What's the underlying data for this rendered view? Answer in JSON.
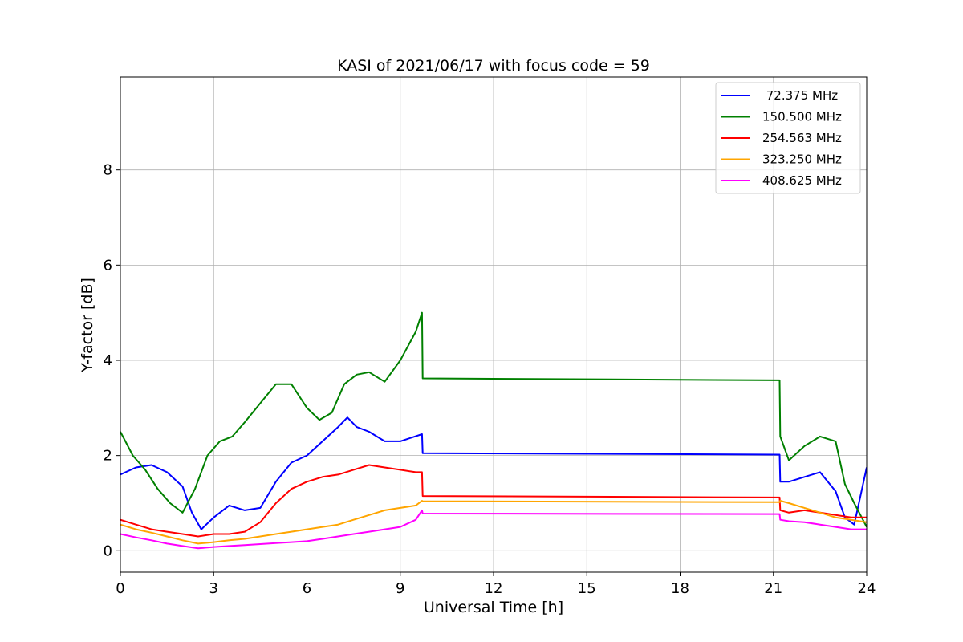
{
  "chart_data": {
    "type": "line",
    "title": "KASI of 2021/06/17 with focus code = 59",
    "xlabel": "Universal Time [h]",
    "ylabel": "Y-factor [dB]",
    "xlim": [
      0,
      24
    ],
    "ylim": [
      -0.45,
      9.95
    ],
    "xticks": [
      0,
      3,
      6,
      9,
      12,
      15,
      18,
      21,
      24
    ],
    "yticks": [
      0,
      2,
      4,
      6,
      8
    ],
    "grid": true,
    "legend_position": "top-right",
    "series": [
      {
        "name": " 72.375 MHz",
        "color": "#0000ff",
        "x": [
          0,
          0.5,
          1.0,
          1.5,
          2.0,
          2.3,
          2.6,
          3.0,
          3.5,
          4.0,
          4.5,
          5.0,
          5.5,
          6.0,
          6.5,
          7.0,
          7.3,
          7.6,
          8.0,
          8.5,
          9.0,
          9.7,
          9.72,
          21.2,
          21.22,
          21.5,
          22.0,
          22.5,
          23.0,
          23.3,
          23.6,
          24.0
        ],
        "y": [
          1.6,
          1.75,
          1.8,
          1.65,
          1.35,
          0.8,
          0.45,
          0.7,
          0.95,
          0.85,
          0.9,
          1.45,
          1.85,
          2.0,
          2.3,
          2.6,
          2.8,
          2.6,
          2.5,
          2.3,
          2.3,
          2.45,
          2.05,
          2.02,
          1.45,
          1.45,
          1.55,
          1.65,
          1.25,
          0.7,
          0.55,
          1.75
        ]
      },
      {
        "name": "150.500 MHz",
        "color": "#008000",
        "x": [
          0,
          0.4,
          0.8,
          1.2,
          1.6,
          2.0,
          2.4,
          2.8,
          3.2,
          3.6,
          4.0,
          4.5,
          5.0,
          5.5,
          6.0,
          6.4,
          6.8,
          7.2,
          7.6,
          8.0,
          8.5,
          9.0,
          9.5,
          9.7,
          9.72,
          21.2,
          21.22,
          21.5,
          22.0,
          22.5,
          23.0,
          23.3,
          23.6,
          24.0
        ],
        "y": [
          2.5,
          2.0,
          1.7,
          1.3,
          1.0,
          0.8,
          1.3,
          2.0,
          2.3,
          2.4,
          2.7,
          3.1,
          3.5,
          3.5,
          3.0,
          2.75,
          2.9,
          3.5,
          3.7,
          3.75,
          3.55,
          4.0,
          4.6,
          5.0,
          3.62,
          3.58,
          2.4,
          1.9,
          2.2,
          2.4,
          2.3,
          1.4,
          1.0,
          0.5
        ]
      },
      {
        "name": "254.563 MHz",
        "color": "#ff0000",
        "x": [
          0,
          0.5,
          1.0,
          1.5,
          2.0,
          2.5,
          3.0,
          3.5,
          4.0,
          4.5,
          5.0,
          5.5,
          6.0,
          6.5,
          7.0,
          7.5,
          8.0,
          8.5,
          9.0,
          9.5,
          9.7,
          9.72,
          21.2,
          21.22,
          21.5,
          22.0,
          22.5,
          23.0,
          23.5,
          24.0
        ],
        "y": [
          0.65,
          0.55,
          0.45,
          0.4,
          0.35,
          0.3,
          0.35,
          0.35,
          0.4,
          0.6,
          1.0,
          1.3,
          1.45,
          1.55,
          1.6,
          1.7,
          1.8,
          1.75,
          1.7,
          1.65,
          1.65,
          1.15,
          1.12,
          0.85,
          0.8,
          0.85,
          0.8,
          0.75,
          0.7,
          0.7
        ]
      },
      {
        "name": "323.250 MHz",
        "color": "#ffa500",
        "x": [
          0,
          0.5,
          1.0,
          1.5,
          2.0,
          2.5,
          3.0,
          3.5,
          4.0,
          4.5,
          5.0,
          5.5,
          6.0,
          6.5,
          7.0,
          7.5,
          8.0,
          8.5,
          9.0,
          9.5,
          9.7,
          9.72,
          21.2,
          21.22,
          21.5,
          22.0,
          22.5,
          23.0,
          23.5,
          24.0
        ],
        "y": [
          0.55,
          0.45,
          0.38,
          0.3,
          0.22,
          0.15,
          0.18,
          0.22,
          0.25,
          0.3,
          0.35,
          0.4,
          0.45,
          0.5,
          0.55,
          0.65,
          0.75,
          0.85,
          0.9,
          0.95,
          1.05,
          1.04,
          1.02,
          1.05,
          1.0,
          0.9,
          0.8,
          0.7,
          0.65,
          0.6
        ]
      },
      {
        "name": "408.625 MHz",
        "color": "#ff00ff",
        "x": [
          0,
          0.5,
          1.0,
          1.5,
          2.0,
          2.5,
          3.0,
          3.5,
          4.0,
          4.5,
          5.0,
          5.5,
          6.0,
          6.5,
          7.0,
          7.5,
          8.0,
          8.5,
          9.0,
          9.5,
          9.7,
          9.72,
          21.2,
          21.22,
          21.5,
          22.0,
          22.5,
          23.0,
          23.5,
          24.0
        ],
        "y": [
          0.35,
          0.28,
          0.22,
          0.15,
          0.1,
          0.05,
          0.08,
          0.1,
          0.12,
          0.14,
          0.16,
          0.18,
          0.2,
          0.25,
          0.3,
          0.35,
          0.4,
          0.45,
          0.5,
          0.65,
          0.85,
          0.78,
          0.77,
          0.65,
          0.62,
          0.6,
          0.55,
          0.5,
          0.45,
          0.45
        ]
      }
    ]
  }
}
